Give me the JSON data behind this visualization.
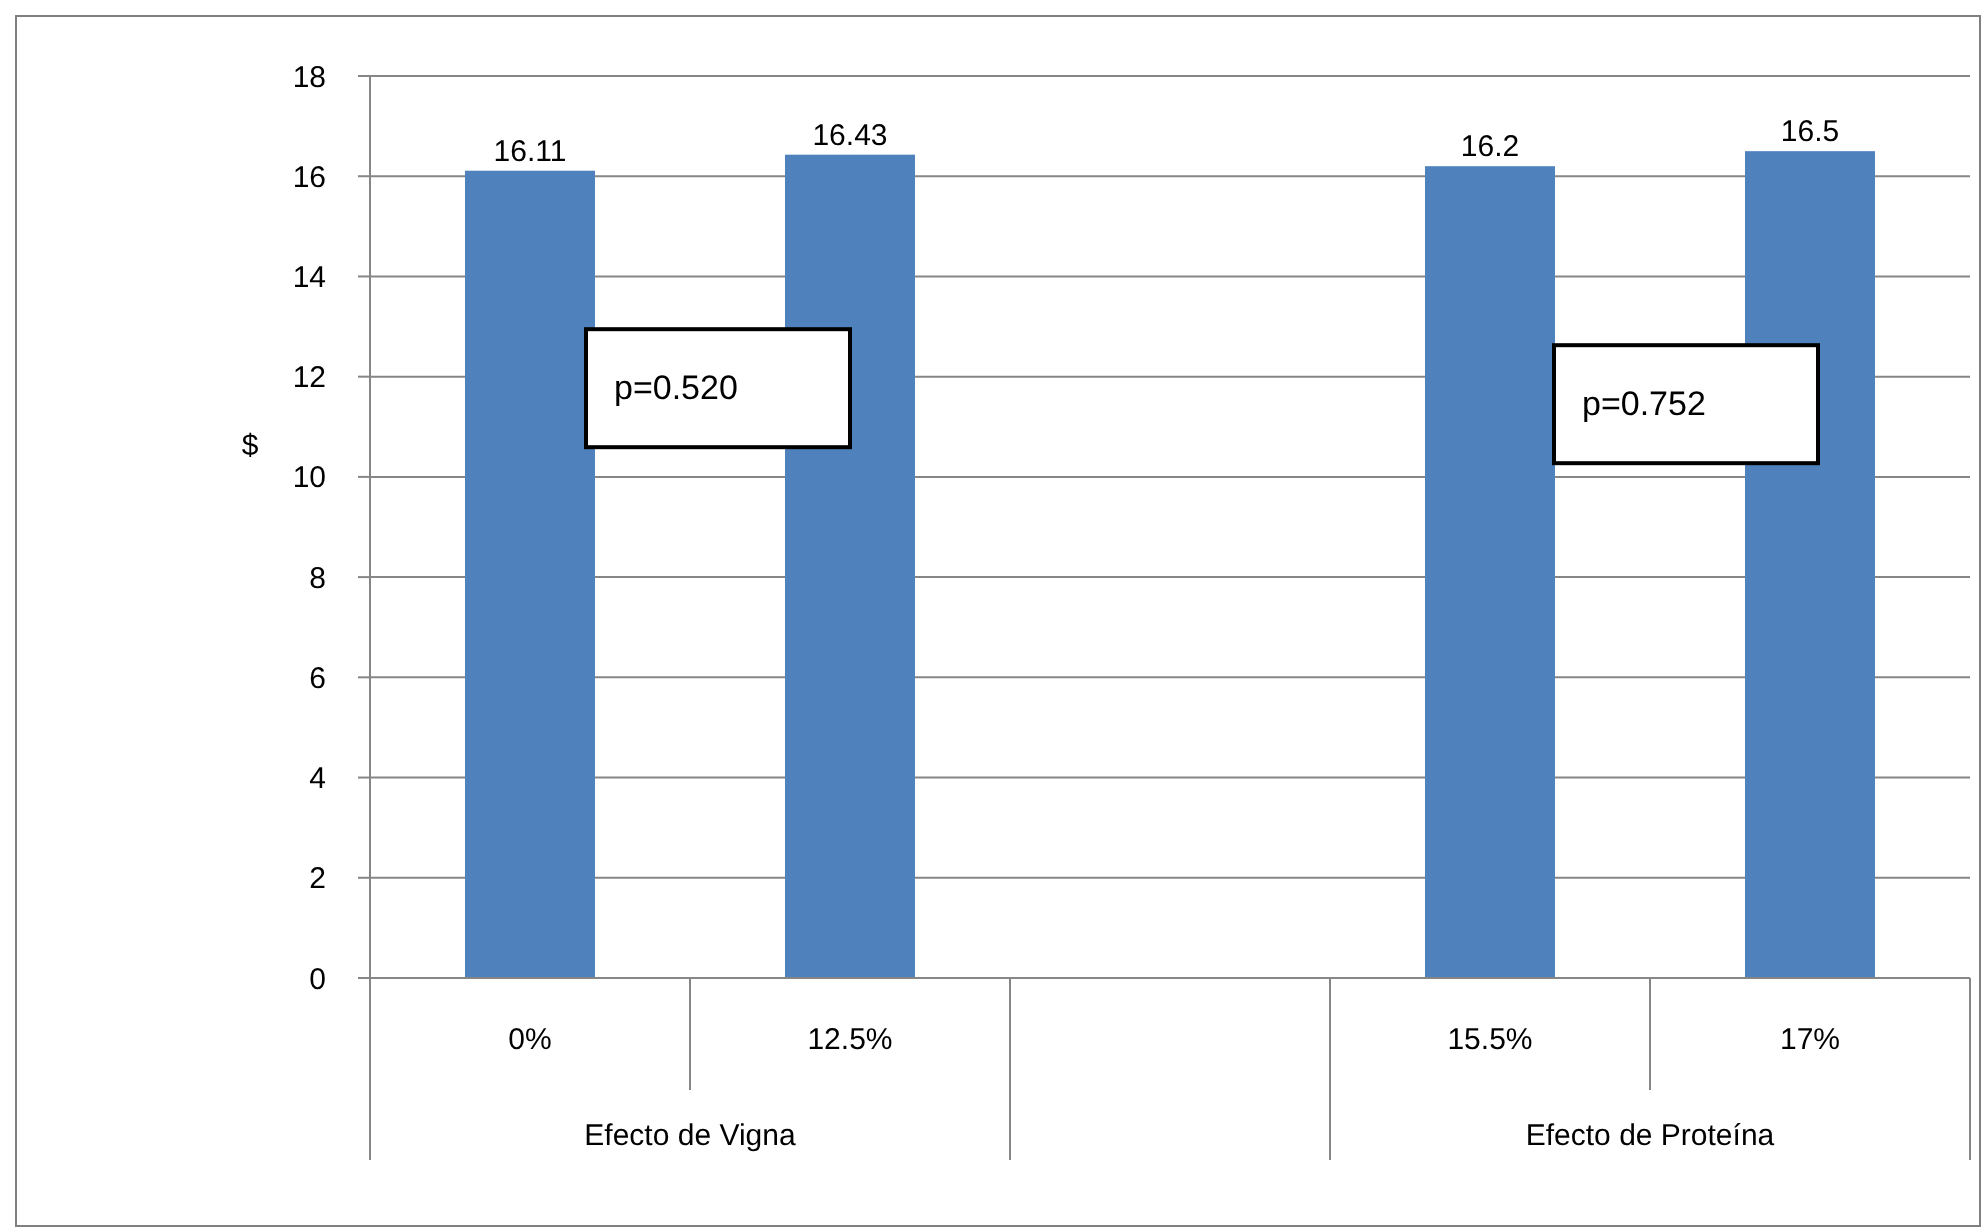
{
  "chart_data": {
    "type": "bar",
    "ylabel": "$",
    "categories": [
      "0%",
      "12.5%",
      null,
      "15.5%",
      "17%"
    ],
    "values": [
      16.11,
      16.43,
      null,
      16.2,
      16.5
    ],
    "color": "#4f81bd",
    "ylim": [
      0,
      18
    ],
    "yticks": [
      0,
      2,
      4,
      6,
      8,
      10,
      12,
      14,
      16,
      18
    ],
    "grid": "y",
    "data_labels": true,
    "annotations": [
      "p=0.520",
      "p=0.752",
      "Efecto de Vigna",
      "Efecto de Proteína"
    ]
  }
}
